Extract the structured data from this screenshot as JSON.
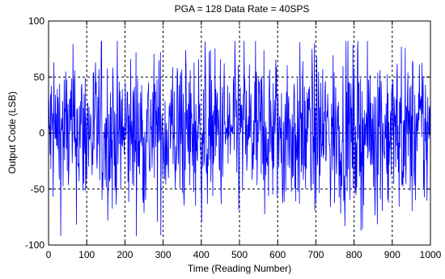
{
  "chart_data": {
    "type": "line",
    "title": "PGA = 128  Data Rate = 40SPS",
    "xlabel": "Time (Reading Number)",
    "ylabel": "Output Code (LSB)",
    "xlim": [
      0,
      1000
    ],
    "ylim": [
      -100,
      100
    ],
    "xticks": [
      0,
      100,
      200,
      300,
      400,
      500,
      600,
      700,
      800,
      900,
      1000
    ],
    "yticks": [
      -100,
      -50,
      0,
      50,
      100
    ],
    "grid": "dashed",
    "series": [
      {
        "color": "#0000ff",
        "amplitude_range": [
          -92,
          82
        ],
        "description": "noise trace of 1000 readings centered on 0 LSB, mostly within ±50 LSB"
      }
    ]
  },
  "colors": {
    "trace": "#0000ff",
    "grid": "#000000",
    "frame": "#000000",
    "background": "#ffffff"
  }
}
